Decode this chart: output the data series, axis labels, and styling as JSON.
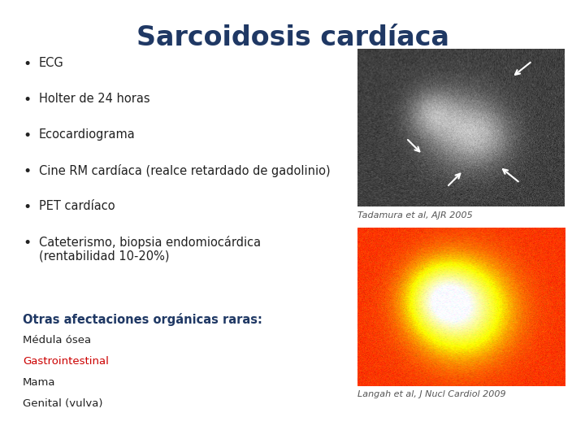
{
  "title": "Sarcoidosis cardíaca",
  "title_color": "#1F3864",
  "title_fontsize": 24,
  "background_color": "#FFFFFF",
  "bullet_items": [
    "ECG",
    "Holter de 24 horas",
    "Ecocardiograma",
    "Cine RM cardíaca (realce retardado de gadolinio)",
    "PET cardíaco",
    "Cateterismo, biopsia endomiocárdica"
  ],
  "bullet_extra": "(rentabilidad 10-20%)",
  "bullet_color": "#222222",
  "bullet_fontsize": 10.5,
  "caption1": "Tadamura et al, AJR 2005",
  "caption1_color": "#555555",
  "caption1_fontsize": 8,
  "caption2": "Langah et al, J Nucl Cardiol 2009",
  "caption2_color": "#555555",
  "caption2_fontsize": 8,
  "section_title": "Otras afectaciones orgánicas raras:",
  "section_title_color": "#1F3864",
  "section_title_fontsize": 10.5,
  "sub_items": [
    "Médula ósea",
    "Gastrointestinal",
    "Mama",
    "Genital (vulva)"
  ],
  "sub_item_color": "#222222",
  "sub_item_fontsize": 9.5,
  "gastrointestinal_color": "#CC0000"
}
